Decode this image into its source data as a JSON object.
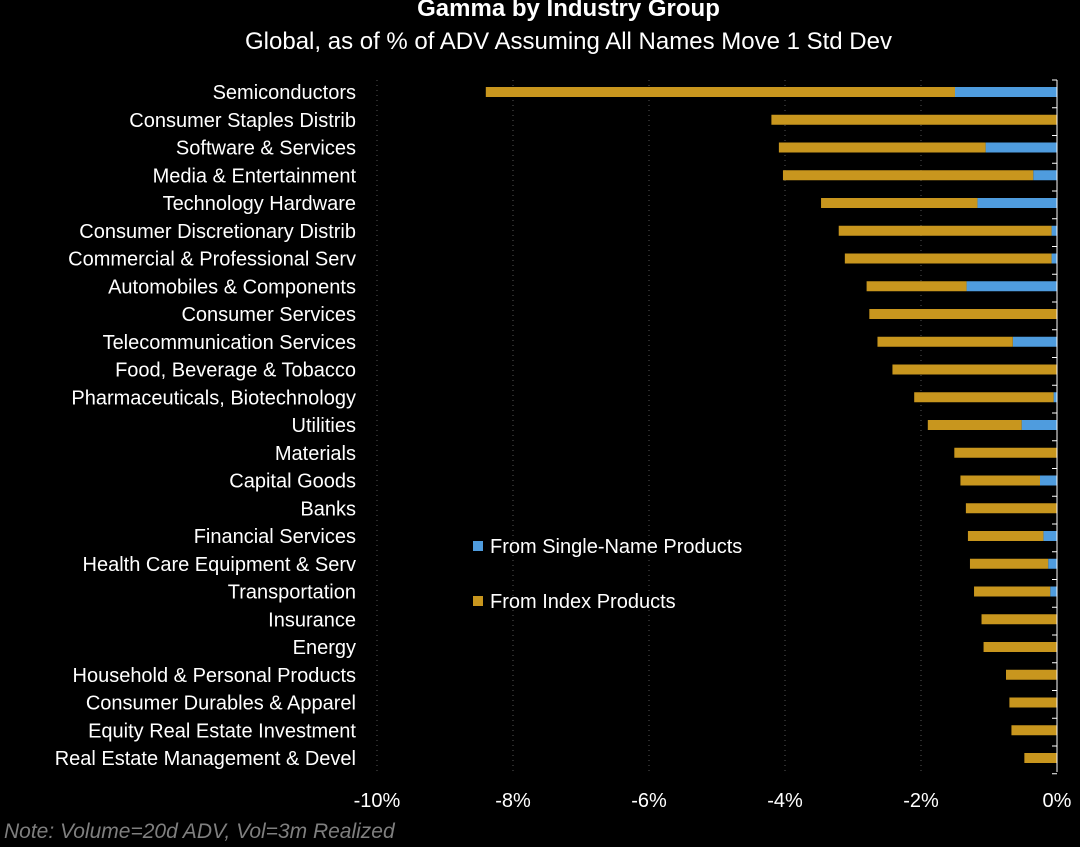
{
  "title": "Gamma  by Industry Group",
  "subtitle": "Global, as of % of ADV Assuming All Names Move 1 Std Dev",
  "note": "Note: Volume=20d ADV, Vol=3m Realized",
  "colors": {
    "background": "#000000",
    "index": "#c8961e",
    "single": "#4f9cde",
    "text": "#ffffff",
    "note": "#7f7f7f",
    "grid": "#555555"
  },
  "chart_data": {
    "type": "bar",
    "orientation": "horizontal",
    "stacked": true,
    "categories": [
      "Semiconductors",
      "Consumer Staples Distrib",
      "Software & Services",
      "Media & Entertainment",
      "Technology Hardware",
      "Consumer Discretionary Distrib",
      "Commercial & Professional Serv",
      "Automobiles & Components",
      "Consumer Services",
      "Telecommunication Services",
      "Food, Beverage & Tobacco",
      "Pharmaceuticals, Biotechnology",
      "Utilities",
      "Materials",
      "Capital Goods",
      "Banks",
      "Financial Services",
      "Health Care Equipment & Serv",
      "Transportation",
      "Insurance",
      "Energy",
      "Household & Personal Products",
      "Consumer Durables & Apparel",
      "Equity Real Estate Investment",
      "Real Estate Management & Devel"
    ],
    "series": [
      {
        "name": "From Single-Name Products",
        "color": "#4f9cde",
        "values": [
          -1.5,
          0.0,
          -1.05,
          -0.35,
          -1.17,
          -0.08,
          -0.08,
          -1.33,
          0.0,
          -0.65,
          0.0,
          -0.05,
          -0.52,
          0.0,
          -0.25,
          0.0,
          -0.2,
          -0.13,
          -0.1,
          0.0,
          0.0,
          0.0,
          0.0,
          0.0,
          0.0
        ]
      },
      {
        "name": "From Index Products",
        "color": "#c8961e",
        "values": [
          -6.9,
          -4.2,
          -3.04,
          -3.68,
          -2.3,
          -3.13,
          -3.04,
          -1.47,
          -2.76,
          -1.99,
          -2.42,
          -2.05,
          -1.38,
          -1.51,
          -1.17,
          -1.34,
          -1.11,
          -1.15,
          -1.12,
          -1.11,
          -1.08,
          -0.75,
          -0.7,
          -0.67,
          -0.48
        ]
      }
    ],
    "xlim": [
      -10,
      0
    ],
    "xticks": [
      -10,
      -8,
      -6,
      -4,
      -2,
      0
    ],
    "xtick_labels": [
      "-10%",
      "-8%",
      "-6%",
      "-4%",
      "-2%",
      "0%"
    ],
    "grid": "vertical dotted",
    "legend": {
      "placement": "middle",
      "entries": [
        "From Single-Name Products",
        "From Index Products"
      ]
    }
  }
}
